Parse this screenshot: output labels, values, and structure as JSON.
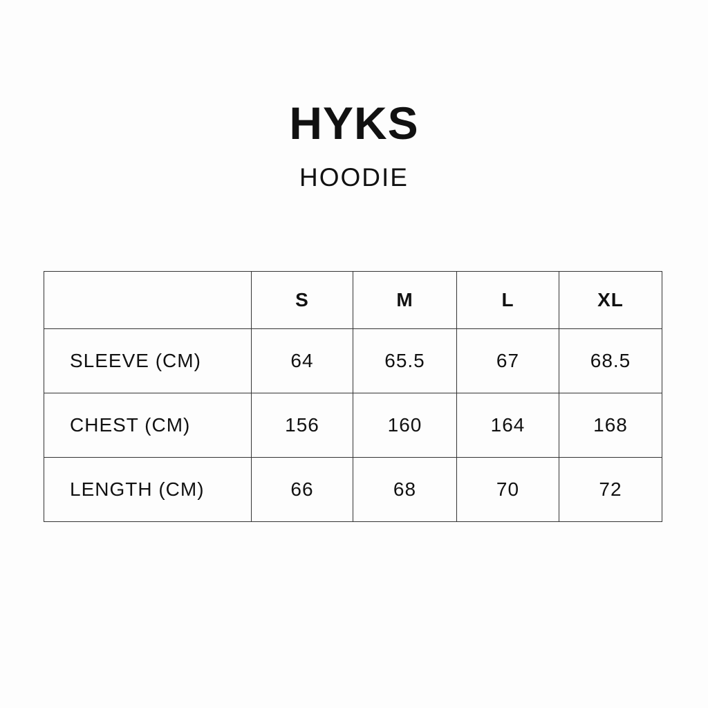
{
  "brand": "HYKS",
  "product": "HOODIE",
  "table": {
    "header": [
      "",
      "S",
      "M",
      "L",
      "XL"
    ],
    "rows": [
      {
        "label": "SLEEVE (CM)",
        "values": [
          "64",
          "65.5",
          "67",
          "68.5"
        ]
      },
      {
        "label": "CHEST (CM)",
        "values": [
          "156",
          "160",
          "164",
          "168"
        ]
      },
      {
        "label": "LENGTH (CM)",
        "values": [
          "66",
          "68",
          "70",
          "72"
        ]
      }
    ]
  }
}
